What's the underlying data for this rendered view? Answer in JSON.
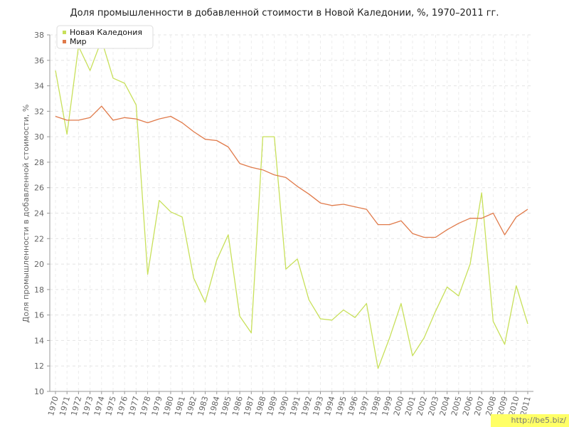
{
  "chart_data": {
    "type": "line",
    "title": "Доля промышленности в добавленной стоимости в Новой Каледонии, %, 1970–2011 гг.",
    "ylabel": "Доля промышленности в добавленной стоимости, %",
    "xlabel": "",
    "ylim": [
      10,
      38
    ],
    "yticks": [
      10,
      12,
      14,
      16,
      18,
      20,
      22,
      24,
      26,
      28,
      30,
      32,
      34,
      36,
      38
    ],
    "grid": true,
    "legend_position": "top-left",
    "x": [
      1970,
      1971,
      1972,
      1973,
      1974,
      1975,
      1976,
      1977,
      1978,
      1979,
      1980,
      1981,
      1982,
      1983,
      1984,
      1985,
      1986,
      1987,
      1988,
      1989,
      1990,
      1991,
      1992,
      1993,
      1994,
      1995,
      1996,
      1997,
      1998,
      1999,
      2000,
      2001,
      2002,
      2003,
      2004,
      2005,
      2006,
      2007,
      2008,
      2009,
      2010,
      2011
    ],
    "series": [
      {
        "name": "Новая Каледония",
        "color": "#c8e05a",
        "values": [
          35.2,
          30.2,
          37.1,
          35.2,
          37.6,
          34.6,
          34.2,
          32.5,
          19.2,
          25.0,
          24.1,
          23.7,
          18.9,
          17.0,
          20.3,
          22.3,
          15.9,
          14.6,
          30.0,
          30.0,
          19.6,
          20.4,
          17.2,
          15.7,
          15.6,
          16.4,
          15.8,
          16.9,
          11.8,
          14.2,
          16.9,
          12.8,
          14.2,
          16.3,
          18.2,
          17.5,
          20.0,
          25.6,
          15.5,
          13.7,
          18.3,
          15.3
        ]
      },
      {
        "name": "Мир",
        "color": "#e07a4a",
        "values": [
          31.6,
          31.3,
          31.3,
          31.5,
          32.4,
          31.3,
          31.5,
          31.4,
          31.1,
          31.4,
          31.6,
          31.1,
          30.4,
          29.8,
          29.7,
          29.2,
          27.9,
          27.6,
          27.4,
          27.0,
          26.8,
          26.1,
          25.5,
          24.8,
          24.6,
          24.7,
          24.5,
          24.3,
          23.1,
          23.1,
          23.4,
          22.4,
          22.1,
          22.1,
          22.7,
          23.2,
          23.6,
          23.6,
          24.0,
          22.3,
          23.7,
          24.3
        ]
      }
    ]
  },
  "watermark": "http://be5.biz/"
}
